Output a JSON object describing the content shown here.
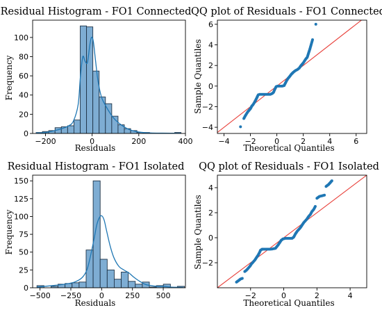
{
  "chart_data": [
    {
      "id": "hist-connected",
      "type": "bar",
      "title": "Residual Histogram - FO1 Connected",
      "xlabel": "Residuals",
      "ylabel": "Frequency",
      "xlim": [
        -255,
        400
      ],
      "ylim": [
        0,
        118
      ],
      "xticks": [
        -200,
        0,
        200,
        400
      ],
      "yticks": [
        0,
        20,
        40,
        60,
        80,
        100
      ],
      "bar_color": "#7eadd3",
      "edge_color": "#1f3347",
      "kde_color": "#1f77b4",
      "bins": [
        {
          "x0": -240,
          "x1": -213,
          "count": 1
        },
        {
          "x0": -213,
          "x1": -186,
          "count": 2
        },
        {
          "x0": -186,
          "x1": -159,
          "count": 3
        },
        {
          "x0": -159,
          "x1": -132,
          "count": 6
        },
        {
          "x0": -132,
          "x1": -105,
          "count": 7
        },
        {
          "x0": -105,
          "x1": -78,
          "count": 8
        },
        {
          "x0": -78,
          "x1": -51,
          "count": 14
        },
        {
          "x0": -51,
          "x1": -24,
          "count": 112
        },
        {
          "x0": -24,
          "x1": 3,
          "count": 111
        },
        {
          "x0": 3,
          "x1": 30,
          "count": 65
        },
        {
          "x0": 30,
          "x1": 57,
          "count": 38
        },
        {
          "x0": 57,
          "x1": 84,
          "count": 31
        },
        {
          "x0": 84,
          "x1": 111,
          "count": 18
        },
        {
          "x0": 111,
          "x1": 138,
          "count": 9
        },
        {
          "x0": 138,
          "x1": 165,
          "count": 5
        },
        {
          "x0": 165,
          "x1": 192,
          "count": 3
        },
        {
          "x0": 192,
          "x1": 219,
          "count": 1
        },
        {
          "x0": 219,
          "x1": 246,
          "count": 1
        },
        {
          "x0": 246,
          "x1": 273,
          "count": 0
        },
        {
          "x0": 273,
          "x1": 300,
          "count": 0
        },
        {
          "x0": 300,
          "x1": 327,
          "count": 0
        },
        {
          "x0": 327,
          "x1": 354,
          "count": 0
        },
        {
          "x0": 354,
          "x1": 381,
          "count": 1
        }
      ],
      "kde": {
        "x": [
          -240,
          -200,
          -160,
          -130,
          -100,
          -80,
          -60,
          -50,
          -40,
          -30,
          -20,
          -10,
          -3,
          5,
          15,
          25,
          40,
          60,
          80,
          100,
          130,
          160,
          200,
          250,
          300,
          380
        ],
        "y": [
          0.5,
          1,
          3,
          5,
          8,
          13,
          30,
          60,
          80,
          75,
          74,
          92,
          100,
          96,
          75,
          55,
          38,
          28,
          20,
          14,
          8,
          4,
          1.5,
          0.5,
          0.3,
          0.3
        ]
      }
    },
    {
      "id": "qq-connected",
      "type": "scatter",
      "title": "QQ plot of Residuals - FO1 Connected",
      "xlabel": "Theoretical Quantiles",
      "ylabel": "Sample Quantiles",
      "xlim": [
        -4.5,
        6.8
      ],
      "ylim": [
        -4.6,
        6.4
      ],
      "xticks": [
        -4,
        -2,
        0,
        2,
        4,
        6
      ],
      "yticks": [
        -4,
        -2,
        0,
        2,
        4,
        6
      ],
      "point_color": "#1f77b4",
      "line_color": "#e8403a",
      "reference_line": [
        [
          -4.5,
          -4.5
        ],
        [
          6.8,
          6.8
        ]
      ],
      "points": [
        [
          -2.75,
          -3.95
        ],
        [
          -2.5,
          -3.15
        ],
        [
          -2.35,
          -2.8
        ],
        [
          -2.2,
          -2.5
        ],
        [
          -2.1,
          -2.35
        ],
        [
          -2.0,
          -2.2
        ],
        [
          -1.9,
          -1.95
        ],
        [
          -1.8,
          -1.8
        ],
        [
          -1.7,
          -1.6
        ],
        [
          -1.6,
          -1.35
        ],
        [
          -1.5,
          -1.1
        ],
        [
          -1.45,
          -0.95
        ],
        [
          -1.4,
          -0.85
        ],
        [
          -1.3,
          -0.8
        ],
        [
          -1.1,
          -0.8
        ],
        [
          -0.9,
          -0.8
        ],
        [
          -0.7,
          -0.8
        ],
        [
          -0.5,
          -0.8
        ],
        [
          -0.35,
          -0.72
        ],
        [
          -0.25,
          -0.6
        ],
        [
          -0.15,
          -0.3
        ],
        [
          -0.05,
          -0.05
        ],
        [
          0.05,
          0.0
        ],
        [
          0.2,
          0.0
        ],
        [
          0.4,
          0.0
        ],
        [
          0.55,
          0.05
        ],
        [
          0.65,
          0.3
        ],
        [
          0.75,
          0.55
        ],
        [
          0.85,
          0.75
        ],
        [
          0.95,
          0.9
        ],
        [
          1.1,
          1.15
        ],
        [
          1.25,
          1.35
        ],
        [
          1.4,
          1.5
        ],
        [
          1.55,
          1.6
        ],
        [
          1.7,
          1.75
        ],
        [
          1.8,
          1.95
        ],
        [
          1.9,
          2.1
        ],
        [
          2.0,
          2.25
        ],
        [
          2.1,
          2.45
        ],
        [
          2.2,
          2.65
        ],
        [
          2.3,
          2.8
        ],
        [
          2.4,
          3.2
        ],
        [
          2.5,
          3.6
        ],
        [
          2.6,
          4.05
        ],
        [
          2.7,
          4.5
        ],
        [
          2.95,
          6.0
        ]
      ]
    },
    {
      "id": "hist-isolated",
      "type": "bar",
      "title": "Residual Histogram - FO1 Isolated",
      "xlabel": "Residuals",
      "ylabel": "Frequency",
      "xlim": [
        -560,
        680
      ],
      "ylim": [
        0,
        158
      ],
      "xticks": [
        -500,
        -250,
        0,
        250,
        500
      ],
      "yticks": [
        0,
        25,
        50,
        75,
        100,
        125,
        150
      ],
      "bar_color": "#7eadd3",
      "edge_color": "#1f3347",
      "kde_color": "#1f77b4",
      "bins": [
        {
          "x0": -525,
          "x1": -468,
          "count": 3
        },
        {
          "x0": -468,
          "x1": -411,
          "count": 0
        },
        {
          "x0": -411,
          "x1": -354,
          "count": 2
        },
        {
          "x0": -354,
          "x1": -297,
          "count": 5
        },
        {
          "x0": -297,
          "x1": -240,
          "count": 6
        },
        {
          "x0": -240,
          "x1": -183,
          "count": 7
        },
        {
          "x0": -183,
          "x1": -126,
          "count": 8
        },
        {
          "x0": -126,
          "x1": -69,
          "count": 53
        },
        {
          "x0": -69,
          "x1": -12,
          "count": 150
        },
        {
          "x0": -12,
          "x1": 45,
          "count": 40
        },
        {
          "x0": 45,
          "x1": 102,
          "count": 25
        },
        {
          "x0": 102,
          "x1": 159,
          "count": 12
        },
        {
          "x0": 159,
          "x1": 216,
          "count": 22
        },
        {
          "x0": 216,
          "x1": 273,
          "count": 9
        },
        {
          "x0": 273,
          "x1": 330,
          "count": 5
        },
        {
          "x0": 330,
          "x1": 387,
          "count": 8
        },
        {
          "x0": 387,
          "x1": 444,
          "count": 1
        },
        {
          "x0": 444,
          "x1": 501,
          "count": 3
        },
        {
          "x0": 501,
          "x1": 558,
          "count": 5
        },
        {
          "x0": 558,
          "x1": 615,
          "count": 0
        },
        {
          "x0": 615,
          "x1": 672,
          "count": 2
        }
      ],
      "kde": {
        "x": [
          -525,
          -400,
          -300,
          -220,
          -160,
          -120,
          -90,
          -60,
          -40,
          -20,
          0,
          20,
          40,
          70,
          100,
          140,
          180,
          220,
          260,
          300,
          350,
          400,
          450,
          500,
          560,
          660
        ],
        "y": [
          1,
          3,
          5,
          8,
          14,
          25,
          45,
          70,
          88,
          98,
          101,
          95,
          80,
          58,
          42,
          30,
          25,
          21,
          15,
          10,
          5,
          3,
          2,
          2,
          1,
          0.5
        ]
      }
    },
    {
      "id": "qq-isolated",
      "type": "scatter",
      "title": "QQ plot of Residuals - FO1 Isolated",
      "xlabel": "Theoretical Quantiles",
      "ylabel": "Sample Quantiles",
      "xlim": [
        -4.0,
        5.0
      ],
      "ylim": [
        -4.0,
        5.0
      ],
      "xticks": [
        -2,
        0,
        2,
        4
      ],
      "yticks": [
        -2,
        0,
        2,
        4
      ],
      "point_color": "#1f77b4",
      "line_color": "#e8403a",
      "reference_line": [
        [
          -4.0,
          -4.0
        ],
        [
          5.0,
          5.0
        ]
      ],
      "points": [
        [
          -2.85,
          -3.55
        ],
        [
          -2.6,
          -3.3
        ],
        [
          -2.5,
          -3.25
        ],
        [
          -2.35,
          -2.7
        ],
        [
          -2.25,
          -2.6
        ],
        [
          -2.15,
          -2.45
        ],
        [
          -2.05,
          -2.3
        ],
        [
          -1.95,
          -2.1
        ],
        [
          -1.85,
          -1.95
        ],
        [
          -1.75,
          -1.8
        ],
        [
          -1.65,
          -1.6
        ],
        [
          -1.55,
          -1.4
        ],
        [
          -1.45,
          -1.15
        ],
        [
          -1.4,
          -1.0
        ],
        [
          -1.3,
          -0.92
        ],
        [
          -1.1,
          -0.92
        ],
        [
          -0.9,
          -0.92
        ],
        [
          -0.7,
          -0.9
        ],
        [
          -0.5,
          -0.85
        ],
        [
          -0.35,
          -0.6
        ],
        [
          -0.25,
          -0.4
        ],
        [
          -0.15,
          -0.2
        ],
        [
          -0.05,
          -0.1
        ],
        [
          0.1,
          -0.05
        ],
        [
          0.3,
          -0.05
        ],
        [
          0.5,
          -0.05
        ],
        [
          0.6,
          0.05
        ],
        [
          0.7,
          0.3
        ],
        [
          0.8,
          0.5
        ],
        [
          0.9,
          0.65
        ],
        [
          1.0,
          0.8
        ],
        [
          1.1,
          1.0
        ],
        [
          1.2,
          1.2
        ],
        [
          1.3,
          1.35
        ],
        [
          1.4,
          1.5
        ],
        [
          1.5,
          1.7
        ],
        [
          1.6,
          1.85
        ],
        [
          1.7,
          2.1
        ],
        [
          1.8,
          2.25
        ],
        [
          1.9,
          2.5
        ],
        [
          2.0,
          3.15
        ],
        [
          2.15,
          3.3
        ],
        [
          2.3,
          3.35
        ],
        [
          2.45,
          3.4
        ],
        [
          2.55,
          4.1
        ],
        [
          2.7,
          4.25
        ],
        [
          2.9,
          4.55
        ]
      ]
    }
  ]
}
